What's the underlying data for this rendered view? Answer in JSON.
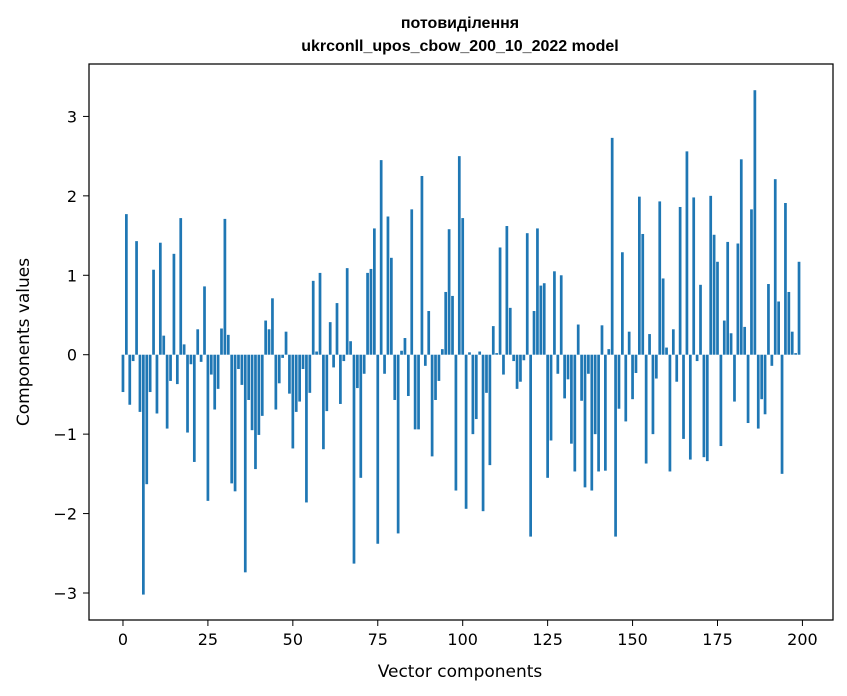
{
  "chart_data": {
    "type": "bar",
    "title": "потовиділення",
    "subtitle": "ukrconll_upos_cbow_200_10_2022 model",
    "xlabel": "Vector components",
    "ylabel": "Components values",
    "xlim": [
      -10,
      209
    ],
    "ylim": [
      -3.34,
      3.66
    ],
    "xticks": [
      0,
      25,
      50,
      75,
      100,
      125,
      150,
      175,
      200
    ],
    "xtick_labels": [
      "0",
      "25",
      "50",
      "75",
      "100",
      "125",
      "150",
      "175",
      "200"
    ],
    "yticks": [
      -3,
      -2,
      -1,
      0,
      1,
      2,
      3
    ],
    "ytick_labels": [
      "−3",
      "−2",
      "−1",
      "0",
      "1",
      "2",
      "3"
    ],
    "grid": false,
    "bar_color": "#1f77b4",
    "values": [
      -0.47,
      1.77,
      -0.63,
      -0.08,
      1.43,
      -0.72,
      -3.02,
      -1.63,
      -0.47,
      1.07,
      -0.74,
      1.41,
      0.24,
      -0.93,
      -0.33,
      1.27,
      -0.37,
      1.72,
      0.13,
      -0.98,
      -0.12,
      -1.35,
      0.32,
      -0.09,
      0.86,
      -1.84,
      -0.25,
      -0.69,
      -0.43,
      0.33,
      1.71,
      0.25,
      -1.62,
      -1.72,
      -0.18,
      -0.38,
      -2.74,
      -0.57,
      -0.95,
      -1.44,
      -1.01,
      -0.77,
      0.43,
      0.32,
      0.71,
      -0.69,
      -0.36,
      -0.04,
      0.29,
      -0.49,
      -1.18,
      -0.72,
      -0.59,
      -0.18,
      -1.86,
      -0.48,
      0.93,
      0.04,
      1.03,
      -1.19,
      -0.71,
      0.41,
      -0.16,
      0.65,
      -0.62,
      -0.08,
      1.09,
      0.17,
      -2.63,
      -0.42,
      -1.55,
      -0.24,
      1.03,
      1.08,
      1.59,
      -2.38,
      2.45,
      -0.24,
      1.74,
      1.22,
      -0.57,
      -2.25,
      0.05,
      0.21,
      -0.52,
      1.83,
      -0.94,
      -0.94,
      2.25,
      -0.14,
      0.55,
      -1.28,
      -0.57,
      -0.33,
      0.07,
      0.79,
      1.58,
      0.74,
      -1.71,
      2.5,
      1.72,
      -1.94,
      0.03,
      -1.0,
      -0.81,
      0.04,
      -1.97,
      -0.48,
      -1.39,
      0.36,
      0.02,
      1.35,
      -0.25,
      1.62,
      0.59,
      -0.08,
      -0.43,
      -0.34,
      -0.07,
      1.53,
      -2.29,
      0.55,
      1.59,
      0.87,
      0.9,
      -1.55,
      -1.08,
      1.05,
      -0.24,
      1.0,
      -0.55,
      -0.31,
      -1.12,
      -1.47,
      0.38,
      -0.58,
      -1.67,
      -0.24,
      -1.71,
      -1.0,
      -1.47,
      0.37,
      -1.46,
      0.07,
      2.73,
      -2.29,
      -0.68,
      1.29,
      -0.84,
      0.29,
      -0.56,
      -0.23,
      1.99,
      1.52,
      -1.37,
      0.26,
      -1.0,
      -0.3,
      1.93,
      0.96,
      0.09,
      -1.47,
      0.32,
      -0.34,
      1.86,
      -1.06,
      2.56,
      -1.32,
      1.98,
      -0.08,
      0.88,
      -1.29,
      -1.34,
      2.0,
      1.51,
      1.17,
      -1.15,
      0.43,
      1.42,
      0.27,
      -0.59,
      1.4,
      2.46,
      0.35,
      -0.86,
      1.83,
      3.33,
      -0.93,
      -0.56,
      -0.75,
      0.89,
      -0.14,
      2.21,
      0.67,
      -1.5,
      1.91,
      0.79,
      0.29,
      0.02,
      1.17
    ]
  }
}
